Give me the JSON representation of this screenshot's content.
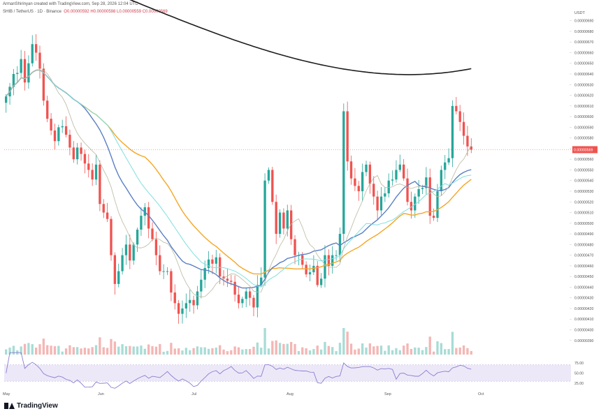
{
  "header": {
    "author_line": "ArmanShirinyan created with TradingView.com, Sep 28, 2026 12:04 UTC",
    "symbol": "SHIB / TetherUS · 1D · Binance",
    "ohlc": "O0.00000592  H0.00000598  L0.00000559  C0.00000569"
  },
  "brand": {
    "name": "TradingView"
  },
  "colors": {
    "up": "#26a69a",
    "down": "#ef5350",
    "ma_black": "#1c1c1c",
    "ma_orange": "#f5a623",
    "ma_blue": "#5b7fc4",
    "ma_cyan": "#7fdfe0",
    "ma_gray": "#b8b8a0",
    "rsi": "#8a7fd0",
    "rsi_band": "#ede8f8"
  },
  "chart_data": {
    "type": "candlestick",
    "price_axis_unit": "USDT",
    "ylim": [
      3.82e-06,
      6.95e-06
    ],
    "y_ticks": [
      "0.00000690",
      "0.00000680",
      "0.00000670",
      "0.00000660",
      "0.00000650",
      "0.00000640",
      "0.00000630",
      "0.00000620",
      "0.00000610",
      "0.00000600",
      "0.00000590",
      "0.00000580",
      "0.00000570",
      "0.00000560",
      "0.00000550",
      "0.00000540",
      "0.00000530",
      "0.00000520",
      "0.00000510",
      "0.00000500",
      "0.00000490",
      "0.00000480",
      "0.00000470",
      "0.00000460",
      "0.00000450",
      "0.00000440",
      "0.00000430",
      "0.00000420",
      "0.00000410",
      "0.00000400",
      "0.00000390"
    ],
    "x_labels": [
      "May",
      "Jun",
      "Jul",
      "Aug",
      "Sep",
      "Oct"
    ],
    "last_price_label": "0.00000569",
    "rsi_ticks": [
      "75.00",
      "50.00",
      "25.00"
    ],
    "closes": [
      619,
      628,
      640,
      641,
      654,
      632,
      650,
      668,
      660,
      645,
      615,
      598,
      587,
      577,
      590,
      591,
      583,
      571,
      560,
      571,
      565,
      556,
      550,
      541,
      555,
      518,
      510,
      504,
      470,
      443,
      455,
      470,
      480,
      465,
      480,
      494,
      507,
      515,
      495,
      485,
      470,
      455,
      455,
      455,
      435,
      425,
      415,
      420,
      425,
      428,
      423,
      436,
      447,
      458,
      466,
      462,
      468,
      450,
      448,
      446,
      445,
      433,
      425,
      429,
      436,
      430,
      421,
      442,
      449,
      540,
      550,
      520,
      490,
      510,
      495,
      512,
      485,
      470,
      470,
      461,
      452,
      454,
      460,
      442,
      448,
      470,
      460,
      470,
      470,
      490,
      605,
      558,
      542,
      535,
      530,
      548,
      555,
      537,
      525,
      512,
      525,
      528,
      540,
      541,
      550,
      555,
      542,
      520,
      512,
      525,
      532,
      533,
      543,
      507,
      505,
      530,
      550,
      557,
      561,
      610,
      605,
      595,
      582,
      572,
      569
    ]
  }
}
